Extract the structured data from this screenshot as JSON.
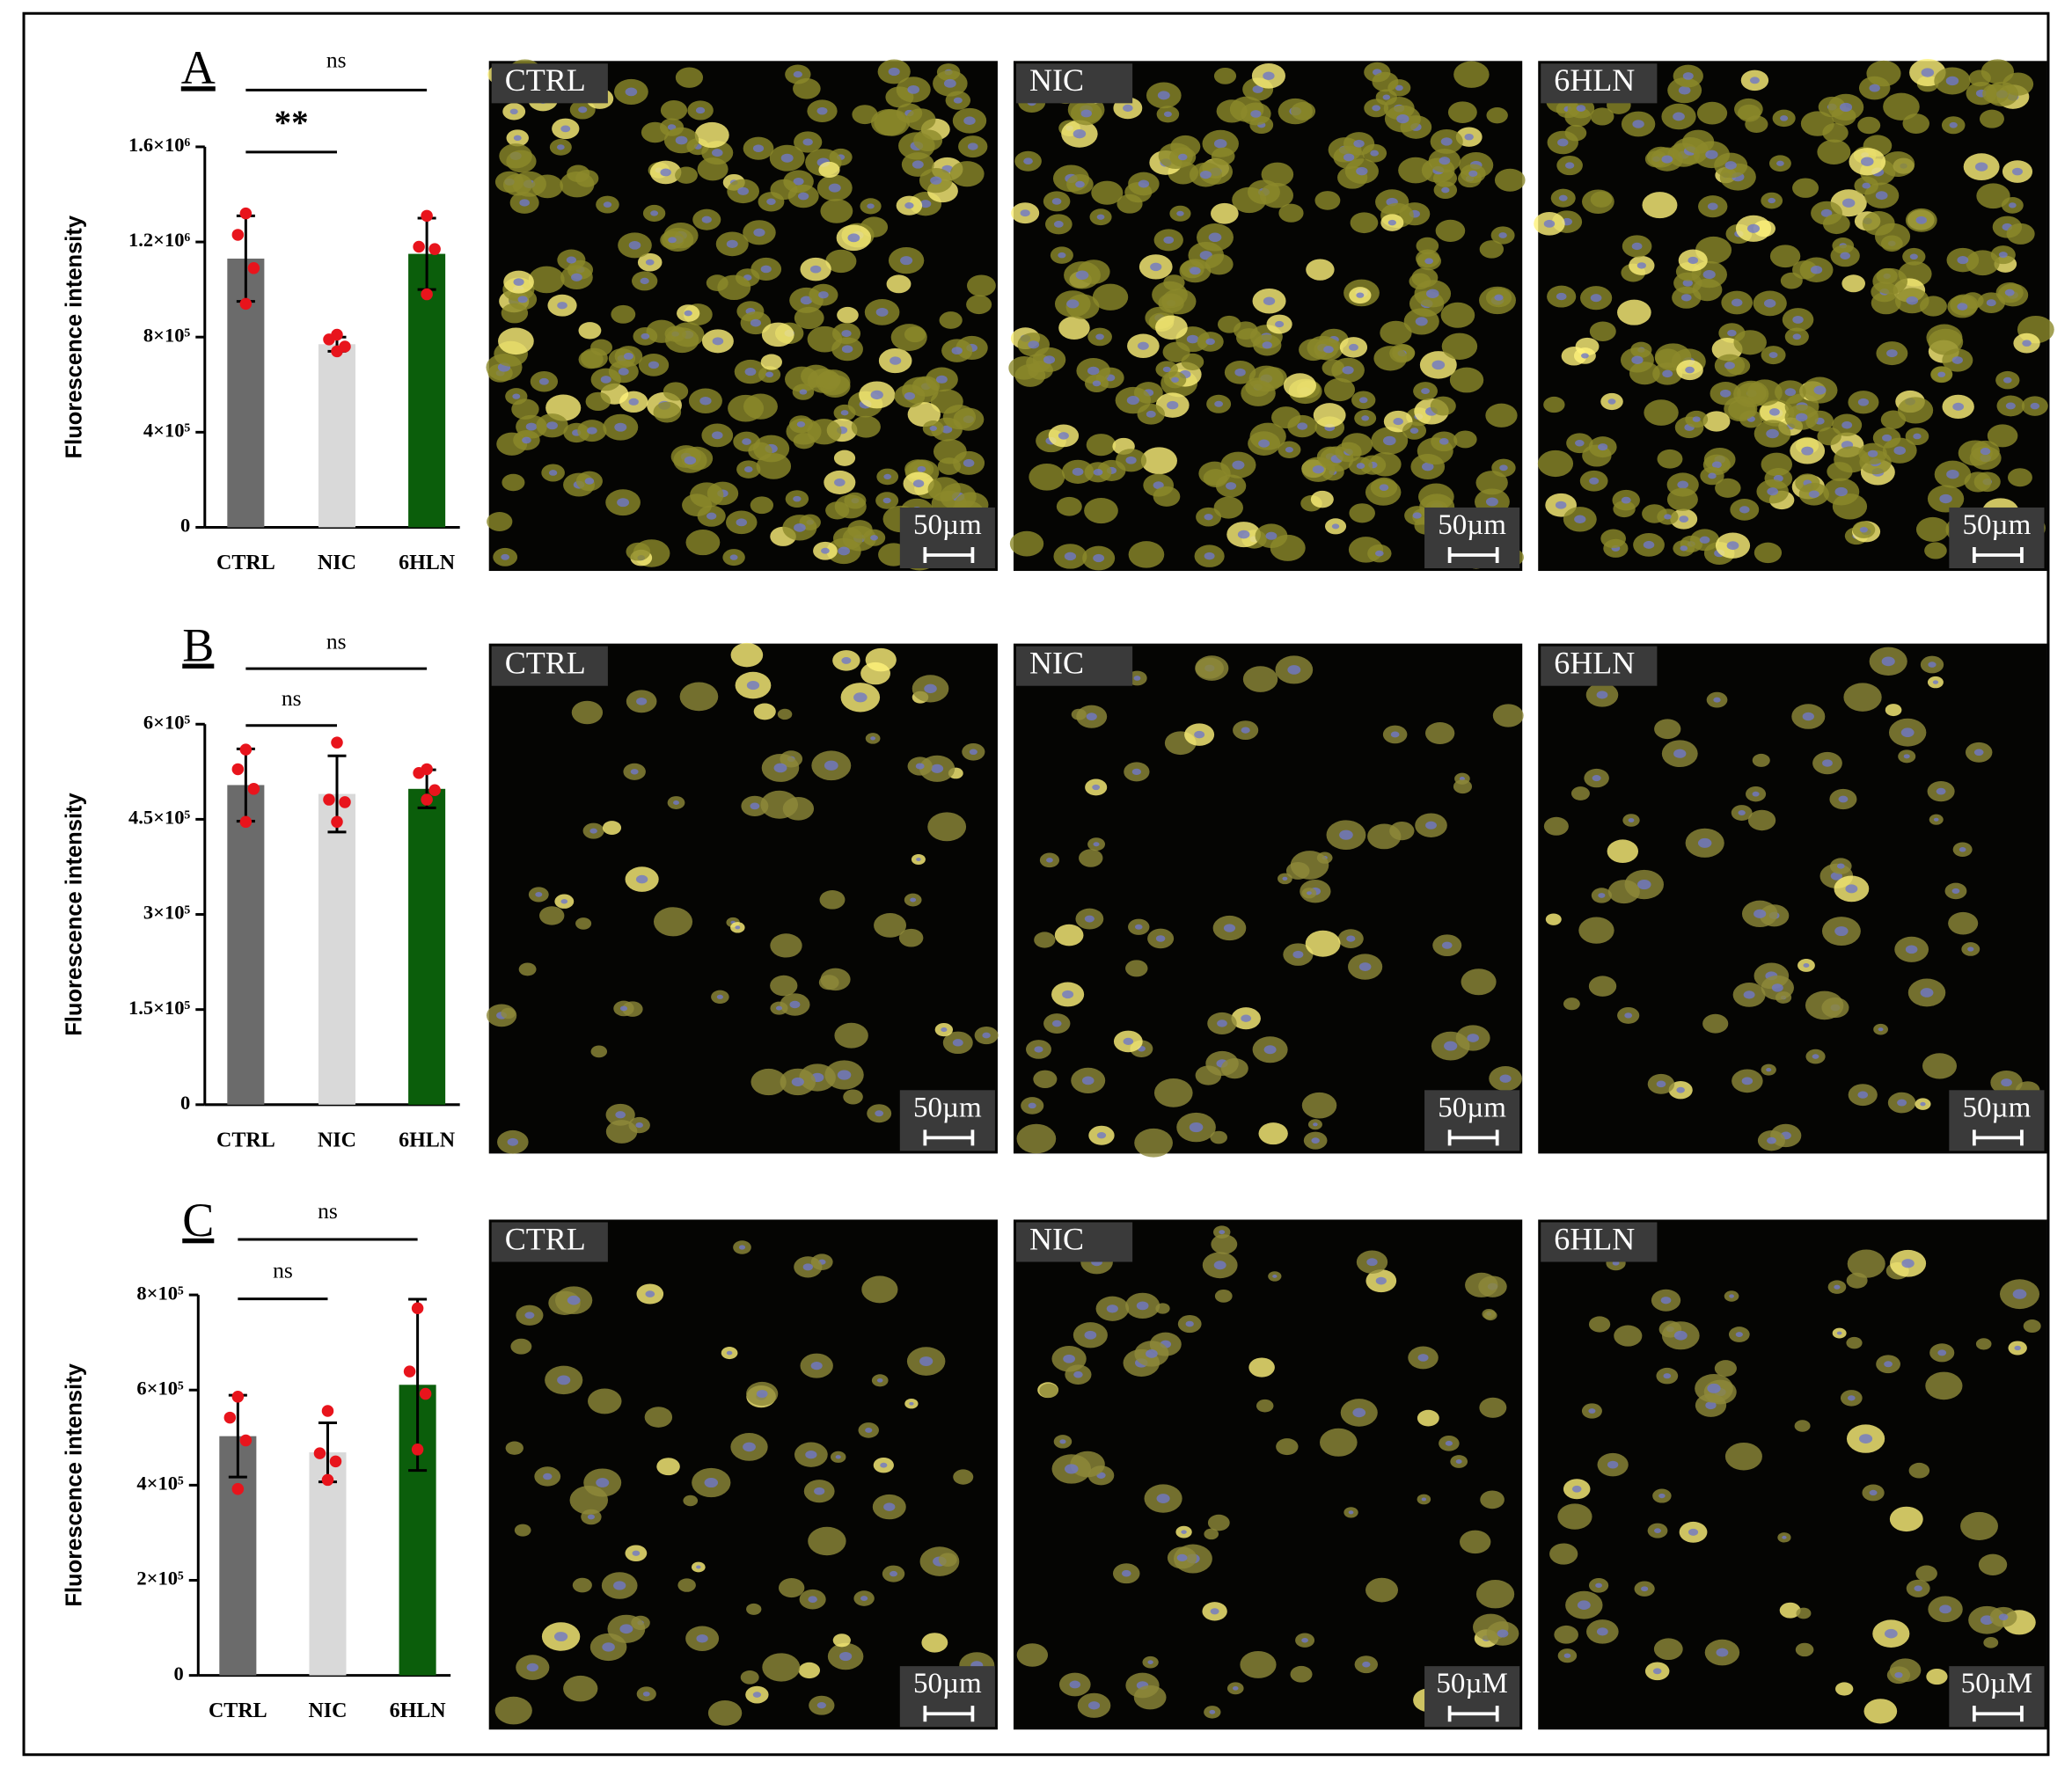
{
  "chart_data": [
    {
      "type": "bar",
      "panel": "A",
      "y_label": "Fluorescence intensity",
      "categories": [
        "CTRL",
        "NIC",
        "6HLN"
      ],
      "colors": [
        "#6b6b6b",
        "#d9d9d9",
        "#0b5e0b"
      ],
      "values": [
        1130000,
        770000,
        1150000
      ],
      "errors": [
        180000,
        30000,
        150000
      ],
      "points": [
        [
          1320000,
          1230000,
          1090000,
          940000
        ],
        [
          810000,
          790000,
          760000,
          740000
        ],
        [
          1310000,
          1180000,
          1170000,
          980000
        ]
      ],
      "point_color": "#e8141c",
      "annotations": [
        "ns",
        "**"
      ],
      "ylim": [
        0,
        1600000
      ],
      "yticks": [
        0,
        {
          "value": 400000,
          "label": "4×10⁵"
        },
        {
          "value": 800000,
          "label": "8×10⁵"
        },
        {
          "value": 1200000,
          "label": "1.2×10⁶"
        },
        {
          "value": 1600000,
          "label": "1.6×10⁶"
        }
      ]
    },
    {
      "type": "bar",
      "panel": "B",
      "y_label": "Fluorescence intensity",
      "categories": [
        "CTRL",
        "NIC",
        "6HLN"
      ],
      "colors": [
        "#6b6b6b",
        "#d9d9d9",
        "#0b5e0b"
      ],
      "values": [
        504000,
        490000,
        498000
      ],
      "errors": [
        57000,
        60000,
        30000
      ],
      "points": [
        [
          560000,
          529000,
          498000,
          446000
        ],
        [
          571000,
          481000,
          477000,
          446000
        ],
        [
          529000,
          523000,
          496000,
          481000
        ]
      ],
      "point_color": "#e8141c",
      "annotations": [
        "ns",
        "ns"
      ],
      "ylim": [
        0,
        600000
      ],
      "yticks": [
        0,
        {
          "value": 150000,
          "label": "1.5×10⁵"
        },
        {
          "value": 300000,
          "label": "3×10⁵"
        },
        {
          "value": 450000,
          "label": "4.5×10⁵"
        },
        {
          "value": 600000,
          "label": "6×10⁵"
        }
      ]
    },
    {
      "type": "bar",
      "panel": "C",
      "y_label": "Fluorescence intensity",
      "categories": [
        "CTRL",
        "NIC",
        "6HLN"
      ],
      "colors": [
        "#6b6b6b",
        "#d9d9d9",
        "#0b5e0b"
      ],
      "values": [
        503000,
        469000,
        611000
      ],
      "errors": [
        86000,
        62000,
        180000
      ],
      "points": [
        [
          586000,
          542000,
          494000,
          392000
        ],
        [
          556000,
          467000,
          450000,
          411000
        ],
        [
          772000,
          639000,
          592000,
          475000
        ]
      ],
      "point_color": "#e8141c",
      "annotations": [
        "ns",
        "ns"
      ],
      "ylim": [
        0,
        800000
      ],
      "yticks": [
        0,
        {
          "value": 200000,
          "label": "2×10⁵"
        },
        {
          "value": 400000,
          "label": "4×10⁵"
        },
        {
          "value": 600000,
          "label": "6×10⁵"
        },
        {
          "value": 800000,
          "label": "8×10⁵"
        }
      ]
    }
  ],
  "micrographs": [
    {
      "labels": [
        "CTRL",
        "NIC",
        "6HLN"
      ],
      "scales": [
        "50µm",
        "50µm",
        "50µm"
      ]
    },
    {
      "labels": [
        "CTRL",
        "NIC",
        "6HLN"
      ],
      "scales": [
        "50µm",
        "50µm",
        "50µm"
      ]
    },
    {
      "labels": [
        "CTRL",
        "NIC",
        "6HLN"
      ],
      "scales": [
        "50µm",
        "50µM",
        "50µM"
      ]
    }
  ]
}
